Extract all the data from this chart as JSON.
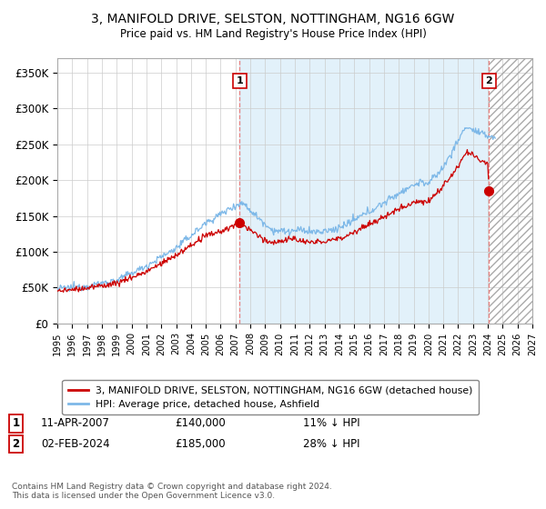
{
  "title": "3, MANIFOLD DRIVE, SELSTON, NOTTINGHAM, NG16 6GW",
  "subtitle": "Price paid vs. HM Land Registry's House Price Index (HPI)",
  "xlim_start": 1995,
  "xlim_end": 2027,
  "ylim": [
    0,
    370000
  ],
  "yticks": [
    0,
    50000,
    100000,
    150000,
    200000,
    250000,
    300000,
    350000
  ],
  "ytick_labels": [
    "£0",
    "£50K",
    "£100K",
    "£150K",
    "£200K",
    "£250K",
    "£300K",
    "£350K"
  ],
  "purchase1": {
    "date_num": 2007.28,
    "price": 140000,
    "label": "1",
    "date_str": "11-APR-2007",
    "pct": "11%"
  },
  "purchase2": {
    "date_num": 2024.08,
    "price": 185000,
    "label": "2",
    "date_str": "02-FEB-2024",
    "pct": "28%"
  },
  "hpi_color": "#7db8e8",
  "hpi_fill_color": "#d0e8f8",
  "price_color": "#cc0000",
  "vline_color": "#e88080",
  "grid_color": "#cccccc",
  "background_color": "#ffffff",
  "legend_label_red": "3, MANIFOLD DRIVE, SELSTON, NOTTINGHAM, NG16 6GW (detached house)",
  "legend_label_blue": "HPI: Average price, detached house, Ashfield",
  "footer": "Contains HM Land Registry data © Crown copyright and database right 2024.\nThis data is licensed under the Open Government Licence v3.0.",
  "xticks": [
    1995,
    1996,
    1997,
    1998,
    1999,
    2000,
    2001,
    2002,
    2003,
    2004,
    2005,
    2006,
    2007,
    2008,
    2009,
    2010,
    2011,
    2012,
    2013,
    2014,
    2015,
    2016,
    2017,
    2018,
    2019,
    2020,
    2021,
    2022,
    2023,
    2024,
    2025,
    2026,
    2027
  ]
}
